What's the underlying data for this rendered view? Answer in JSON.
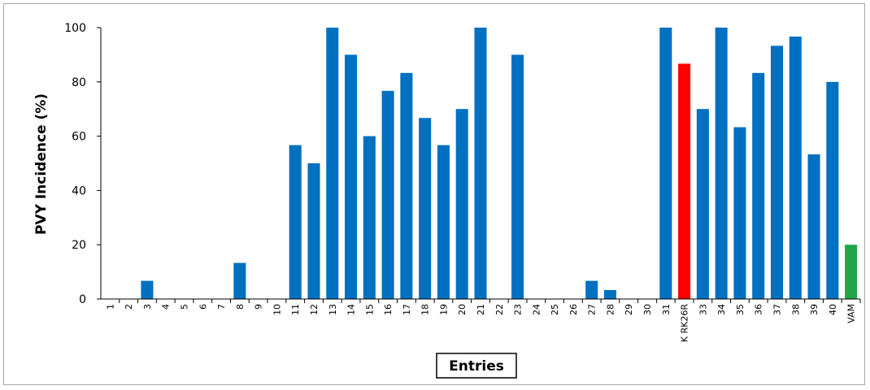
{
  "chart_data": {
    "type": "bar",
    "title": "",
    "xlabel": "Entries",
    "ylabel": "PVY Incidence (%)",
    "ylim": [
      0,
      100
    ],
    "yticks": [
      0,
      20,
      40,
      60,
      80,
      100
    ],
    "grid": false,
    "legend": "none",
    "categories": [
      "1",
      "2",
      "3",
      "4",
      "5",
      "6",
      "7",
      "8",
      "9",
      "10",
      "11",
      "12",
      "13",
      "14",
      "15",
      "16",
      "17",
      "18",
      "19",
      "20",
      "21",
      "22",
      "23",
      "24",
      "25",
      "26",
      "27",
      "28",
      "29",
      "30",
      "31",
      "K RK26R",
      "33",
      "34",
      "35",
      "36",
      "37",
      "38",
      "39",
      "40",
      "VAM"
    ],
    "series": [
      {
        "values": [
          0,
          0,
          6.7,
          0,
          0,
          0,
          0,
          13.3,
          0,
          0,
          56.7,
          50,
          100,
          90,
          60,
          76.7,
          83.3,
          66.7,
          56.7,
          70,
          100,
          0,
          90,
          0,
          0,
          0,
          6.7,
          3.3,
          0,
          0,
          100,
          86.7,
          70,
          100,
          63.3,
          83.3,
          93.3,
          96.7,
          53.3,
          80,
          20
        ]
      }
    ],
    "colors": {
      "default": "#0070c0",
      "highlight": "#ff0000",
      "control": "#1fa64a",
      "axis": "#000000",
      "frame": "#a6a6a6"
    },
    "bar_colors_by_category": {
      "K RK26R": "highlight",
      "VAM": "control"
    }
  }
}
